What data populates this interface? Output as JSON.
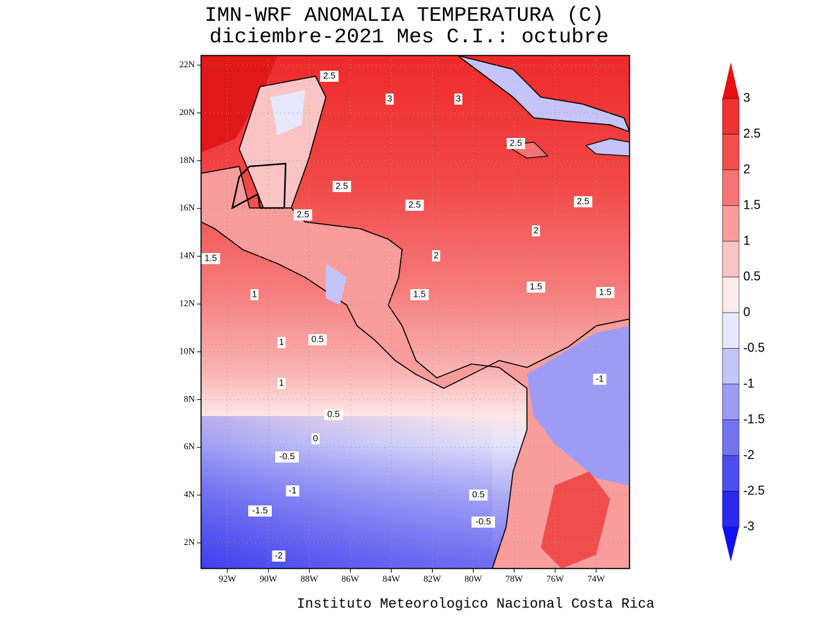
{
  "title": [
    "IMN-WRF  ANOMALIA TEMPERATURA (C)",
    "diciembre-2021 Mes C.I.: octubre"
  ],
  "lat_labels": [
    "22N",
    "20N",
    "18N",
    "16N",
    "14N",
    "12N",
    "10N",
    "8N",
    "6N",
    "4N",
    "2N"
  ],
  "lon_labels": [
    "92W",
    "90W",
    "88W",
    "86W",
    "84W",
    "82W",
    "80W",
    "78W",
    "76W",
    "74W"
  ],
  "colorbar": {
    "levels": [
      3,
      2.5,
      2,
      1.5,
      1,
      0.5,
      0,
      -0.5,
      -1,
      -1.5,
      -2,
      -2.5,
      -3
    ],
    "colors": [
      "#e81010",
      "#f03232",
      "#f24d4d",
      "#f57474",
      "#f89c9c",
      "#fac4c4",
      "#fdeaea",
      "#e8e8fc",
      "#c4c4f8",
      "#9c9cf5",
      "#7474f2",
      "#4d4df0",
      "#2a2aee",
      "#1010f0"
    ]
  },
  "contour_labels": [
    2.5,
    3,
    3,
    2.5,
    2.5,
    2.5,
    2,
    2,
    1.5,
    1.5,
    1,
    0.5,
    1,
    0.5,
    0,
    -0.5,
    -1,
    -1.5,
    -2,
    0.5,
    -0.5,
    -1,
    2.5,
    1,
    1.5,
    2.5,
    1.5
  ],
  "footer": "Instituto Meteorologico Nacional Costa Rica"
}
